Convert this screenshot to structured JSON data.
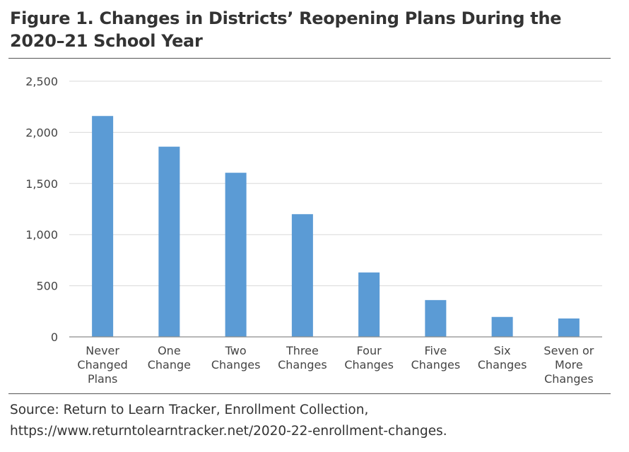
{
  "figure": {
    "title": "Figure 1. Changes in Districts’ Reopening Plans During the 2020–21 School Year",
    "source": "Source: Return to Learn Tracker, Enrollment Collection, https://www.returntolearntracker.net/2020-22-enrollment-changes."
  },
  "chart_data": {
    "type": "bar",
    "title": "Figure 1. Changes in Districts’ Reopening Plans During the 2020–21 School Year",
    "xlabel": "",
    "ylabel": "",
    "categories": [
      [
        "Never",
        "Changed",
        "Plans"
      ],
      [
        "One",
        "Change"
      ],
      [
        "Two",
        "Changes"
      ],
      [
        "Three",
        "Changes"
      ],
      [
        "Four",
        "Changes"
      ],
      [
        "Five",
        "Changes"
      ],
      [
        "Six",
        "Changes"
      ],
      [
        "Seven or",
        "More",
        "Changes"
      ]
    ],
    "values": [
      2160,
      1860,
      1605,
      1200,
      630,
      360,
      195,
      180
    ],
    "ylim": [
      0,
      2500
    ],
    "yticks": [
      0,
      500,
      1000,
      1500,
      2000,
      2500
    ],
    "ytick_labels": [
      "0",
      "500",
      "1,000",
      "1,500",
      "2,000",
      "2,500"
    ],
    "bar_color": "#5b9bd5",
    "grid_color": "#d9d9d9",
    "grid": true,
    "legend": "none"
  }
}
